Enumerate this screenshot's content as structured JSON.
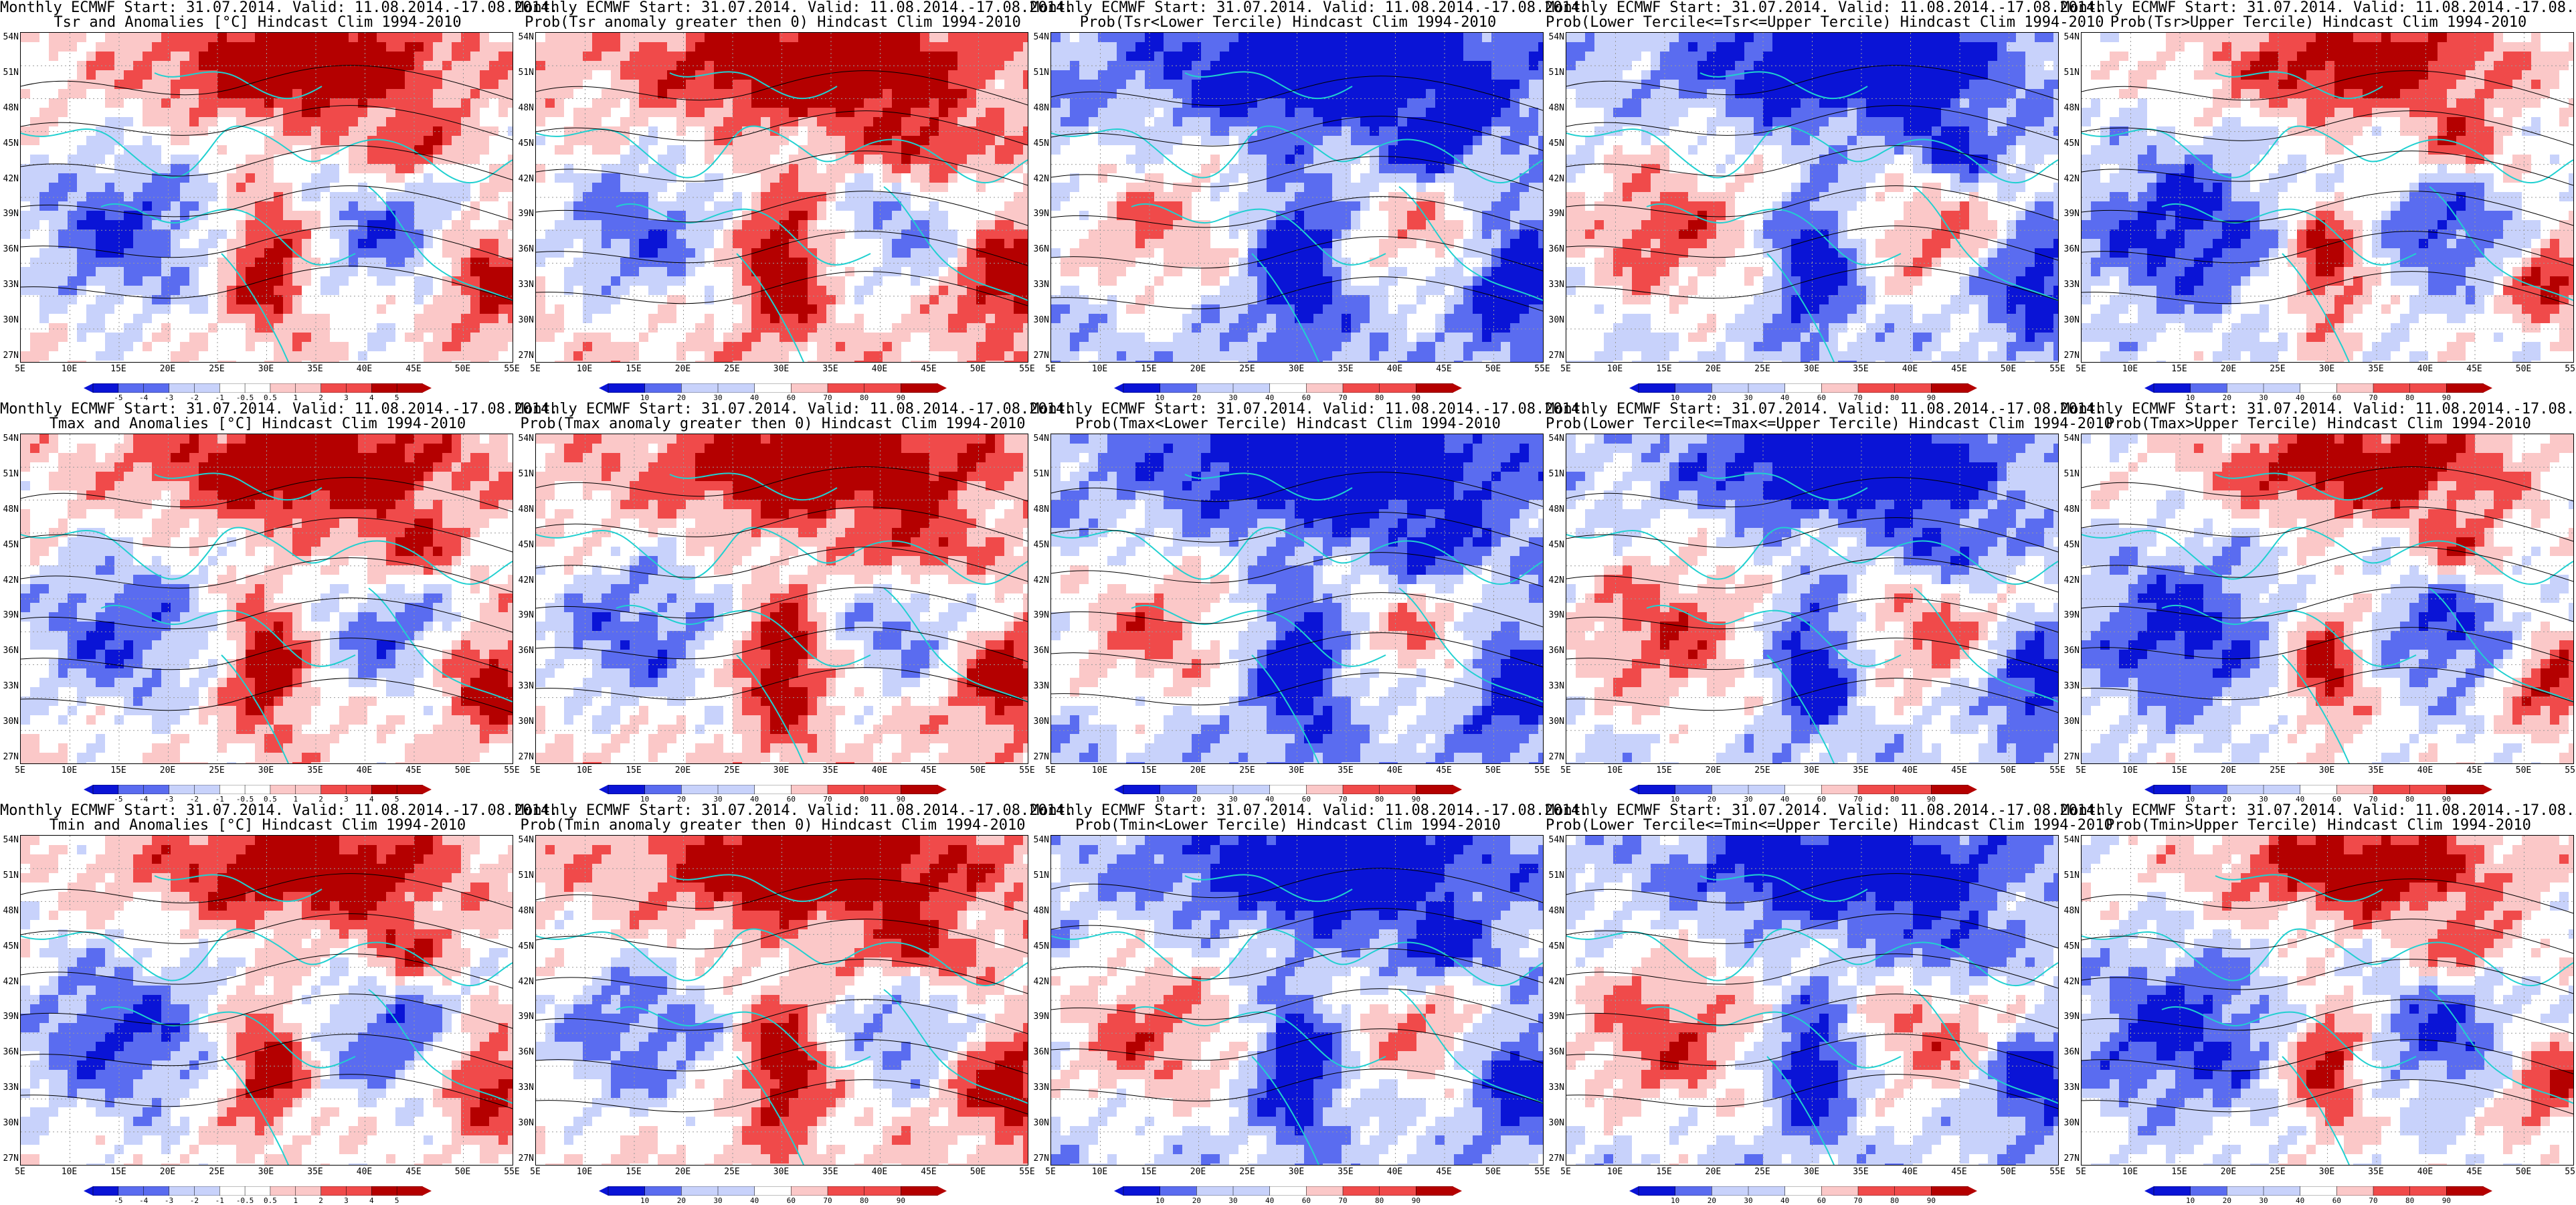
{
  "figure": {
    "header_line1": "Monthly ECMWF Start: 31.07.2014. Valid: 11.08.2014.-17.08.2014.",
    "x_ticks": [
      "5E",
      "10E",
      "15E",
      "20E",
      "25E",
      "30E",
      "35E",
      "40E",
      "45E",
      "50E",
      "55E"
    ],
    "y_ticks": [
      "54N",
      "51N",
      "48N",
      "45N",
      "42N",
      "39N",
      "36N",
      "33N",
      "30N",
      "27N"
    ],
    "anomaly_colorbar_ticks": [
      "-5",
      "-4",
      "-3",
      "-2",
      "-1",
      "-0.5",
      "0.5",
      "1",
      "2",
      "3",
      "4",
      "5"
    ],
    "probability_colorbar_ticks": [
      "10",
      "20",
      "30",
      "40",
      "60",
      "70",
      "80",
      "90"
    ],
    "colors": {
      "deep_blue": "#0a14d6",
      "mid_blue": "#5a6cf0",
      "light_blue": "#c8d2fb",
      "white": "#ffffff",
      "light_red": "#fbc8c8",
      "mid_red": "#f04a4a",
      "deep_red": "#b40000",
      "coast": "#20d0d0",
      "contour": "#000000"
    }
  },
  "panels": [
    {
      "line2": "Tsr and Anomalies [°C] Hindcast Clim 1994-2010",
      "bar": "anomaly",
      "bias": 0.15
    },
    {
      "line2": "Prob(Tsr anomaly greater then 0) Hindcast Clim 1994-2010",
      "bar": "probability",
      "bias": 0.35
    },
    {
      "line2": "Prob(Tsr<Lower Tercile) Hindcast Clim 1994-2010",
      "bar": "probability",
      "bias": -0.55
    },
    {
      "line2": "Prob(Lower Tercile<=Tsr<=Upper Tercile) Hindcast Clim 1994-2010",
      "bar": "probability",
      "bias": -0.35
    },
    {
      "line2": "Prob(Tsr>Upper Tercile) Hindcast Clim 1994-2010",
      "bar": "probability",
      "bias": -0.05
    },
    {
      "line2": "Tmax and Anomalies [°C] Hindcast Clim 1994-2010",
      "bar": "anomaly",
      "bias": 0.2
    },
    {
      "line2": "Prob(Tmax anomaly greater then 0) Hindcast Clim 1994-2010",
      "bar": "probability",
      "bias": 0.3
    },
    {
      "line2": "Prob(Tmax<Lower Tercile) Hindcast Clim 1994-2010",
      "bar": "probability",
      "bias": -0.5
    },
    {
      "line2": "Prob(Lower Tercile<=Tmax<=Upper Tercile) Hindcast Clim 1994-2010",
      "bar": "probability",
      "bias": -0.3
    },
    {
      "line2": "Prob(Tmax>Upper Tercile) Hindcast Clim 1994-2010",
      "bar": "probability",
      "bias": -0.05
    },
    {
      "line2": "Tmin and Anomalies [°C] Hindcast Clim 1994-2010",
      "bar": "anomaly",
      "bias": 0.1
    },
    {
      "line2": "Prob(Tmin anomaly greater then 0) Hindcast Clim 1994-2010",
      "bar": "probability",
      "bias": 0.3
    },
    {
      "line2": "Prob(Tmin<Lower Tercile) Hindcast Clim 1994-2010",
      "bar": "probability",
      "bias": -0.4
    },
    {
      "line2": "Prob(Lower Tercile<=Tmin<=Upper Tercile) Hindcast Clim 1994-2010",
      "bar": "probability",
      "bias": -0.3
    },
    {
      "line2": "Prob(Tmin>Upper Tercile) Hindcast Clim 1994-2010",
      "bar": "probability",
      "bias": -0.05
    }
  ]
}
